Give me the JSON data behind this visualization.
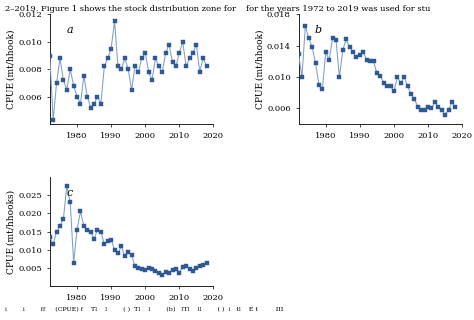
{
  "panel_a": {
    "label": "a",
    "years": [
      1972,
      1973,
      1974,
      1975,
      1976,
      1977,
      1978,
      1979,
      1980,
      1981,
      1982,
      1983,
      1984,
      1985,
      1986,
      1987,
      1988,
      1989,
      1990,
      1991,
      1992,
      1993,
      1994,
      1995,
      1996,
      1997,
      1998,
      1999,
      2000,
      2001,
      2002,
      2003,
      2004,
      2005,
      2006,
      2007,
      2008,
      2009,
      2010,
      2011,
      2012,
      2013,
      2014,
      2015,
      2016,
      2017,
      2018
    ],
    "values": [
      0.009,
      0.0043,
      0.007,
      0.0088,
      0.0072,
      0.0065,
      0.008,
      0.0068,
      0.006,
      0.0055,
      0.0075,
      0.006,
      0.0052,
      0.0055,
      0.006,
      0.0055,
      0.0082,
      0.0088,
      0.0095,
      0.0115,
      0.0082,
      0.008,
      0.0088,
      0.008,
      0.0065,
      0.0082,
      0.0078,
      0.0088,
      0.0092,
      0.0078,
      0.0072,
      0.0088,
      0.0082,
      0.0078,
      0.0092,
      0.0098,
      0.0085,
      0.0082,
      0.0092,
      0.01,
      0.0082,
      0.0088,
      0.0092,
      0.0098,
      0.0078,
      0.0088,
      0.0082
    ],
    "ylabel": "CPUE (mt/hhook)",
    "xlim": [
      1972,
      2020
    ],
    "ylim": [
      0.004,
      0.012
    ],
    "yticks": [
      0.006,
      0.008,
      0.01,
      0.012
    ]
  },
  "panel_b": {
    "label": "b",
    "years": [
      1972,
      1973,
      1974,
      1975,
      1976,
      1977,
      1978,
      1979,
      1980,
      1981,
      1982,
      1983,
      1984,
      1985,
      1986,
      1987,
      1988,
      1989,
      1990,
      1991,
      1992,
      1993,
      1994,
      1995,
      1996,
      1997,
      1998,
      1999,
      2000,
      2001,
      2002,
      2003,
      2004,
      2005,
      2006,
      2007,
      2008,
      2009,
      2010,
      2011,
      2012,
      2013,
      2014,
      2015,
      2016,
      2017,
      2018
    ],
    "values": [
      0.013,
      0.01,
      0.0165,
      0.015,
      0.0138,
      0.0118,
      0.009,
      0.0085,
      0.0132,
      0.0122,
      0.015,
      0.0147,
      0.01,
      0.0135,
      0.0148,
      0.0138,
      0.0132,
      0.0125,
      0.0128,
      0.0132,
      0.0122,
      0.012,
      0.012,
      0.0105,
      0.0102,
      0.0092,
      0.0088,
      0.0088,
      0.0082,
      0.01,
      0.0092,
      0.01,
      0.0088,
      0.0078,
      0.0072,
      0.0062,
      0.0058,
      0.0058,
      0.0062,
      0.006,
      0.0068,
      0.0062,
      0.0058,
      0.0052,
      0.0058,
      0.0068,
      0.0062
    ],
    "ylabel": "CPUE (mt/hhook)",
    "xlim": [
      1972,
      2020
    ],
    "ylim": [
      0.004,
      0.018
    ],
    "yticks": [
      0.006,
      0.01,
      0.014,
      0.018
    ]
  },
  "panel_c": {
    "label": "c",
    "years": [
      1972,
      1973,
      1974,
      1975,
      1976,
      1977,
      1978,
      1979,
      1980,
      1981,
      1982,
      1983,
      1984,
      1985,
      1986,
      1987,
      1988,
      1989,
      1990,
      1991,
      1992,
      1993,
      1994,
      1995,
      1996,
      1997,
      1998,
      1999,
      2000,
      2001,
      2002,
      2003,
      2004,
      2005,
      2006,
      2007,
      2008,
      2009,
      2010,
      2011,
      2012,
      2013,
      2014,
      2015,
      2016,
      2017,
      2018
    ],
    "values": [
      0.0135,
      0.0115,
      0.015,
      0.0165,
      0.0185,
      0.0275,
      0.023,
      0.0065,
      0.0155,
      0.0205,
      0.0165,
      0.0155,
      0.015,
      0.013,
      0.0155,
      0.015,
      0.0115,
      0.0125,
      0.0128,
      0.01,
      0.009,
      0.011,
      0.0082,
      0.0095,
      0.0085,
      0.0055,
      0.005,
      0.0048,
      0.0045,
      0.005,
      0.0048,
      0.0042,
      0.0038,
      0.0032,
      0.004,
      0.0038,
      0.0045,
      0.0048,
      0.0038,
      0.0052,
      0.0055,
      0.0048,
      0.0042,
      0.005,
      0.0055,
      0.0058,
      0.0065
    ],
    "ylabel": "CPUE (mt/hhooks)",
    "xlim": [
      1972,
      2020
    ],
    "ylim": [
      0.0,
      0.03
    ],
    "yticks": [
      0.005,
      0.01,
      0.015,
      0.02,
      0.025
    ]
  },
  "top_text_left": "2–2019. Figure 1 shows the stock distribution zone for",
  "top_text_right": "for the years 1972 to 2019 was used for stu",
  "line_color": "#7b9fc7",
  "marker_color": "#2e5993",
  "marker_size": 2.5,
  "line_width": 0.75,
  "font_family": "DejaVu Serif",
  "label_font_size": 6.5,
  "tick_font_size": 6,
  "panel_label_size": 8
}
